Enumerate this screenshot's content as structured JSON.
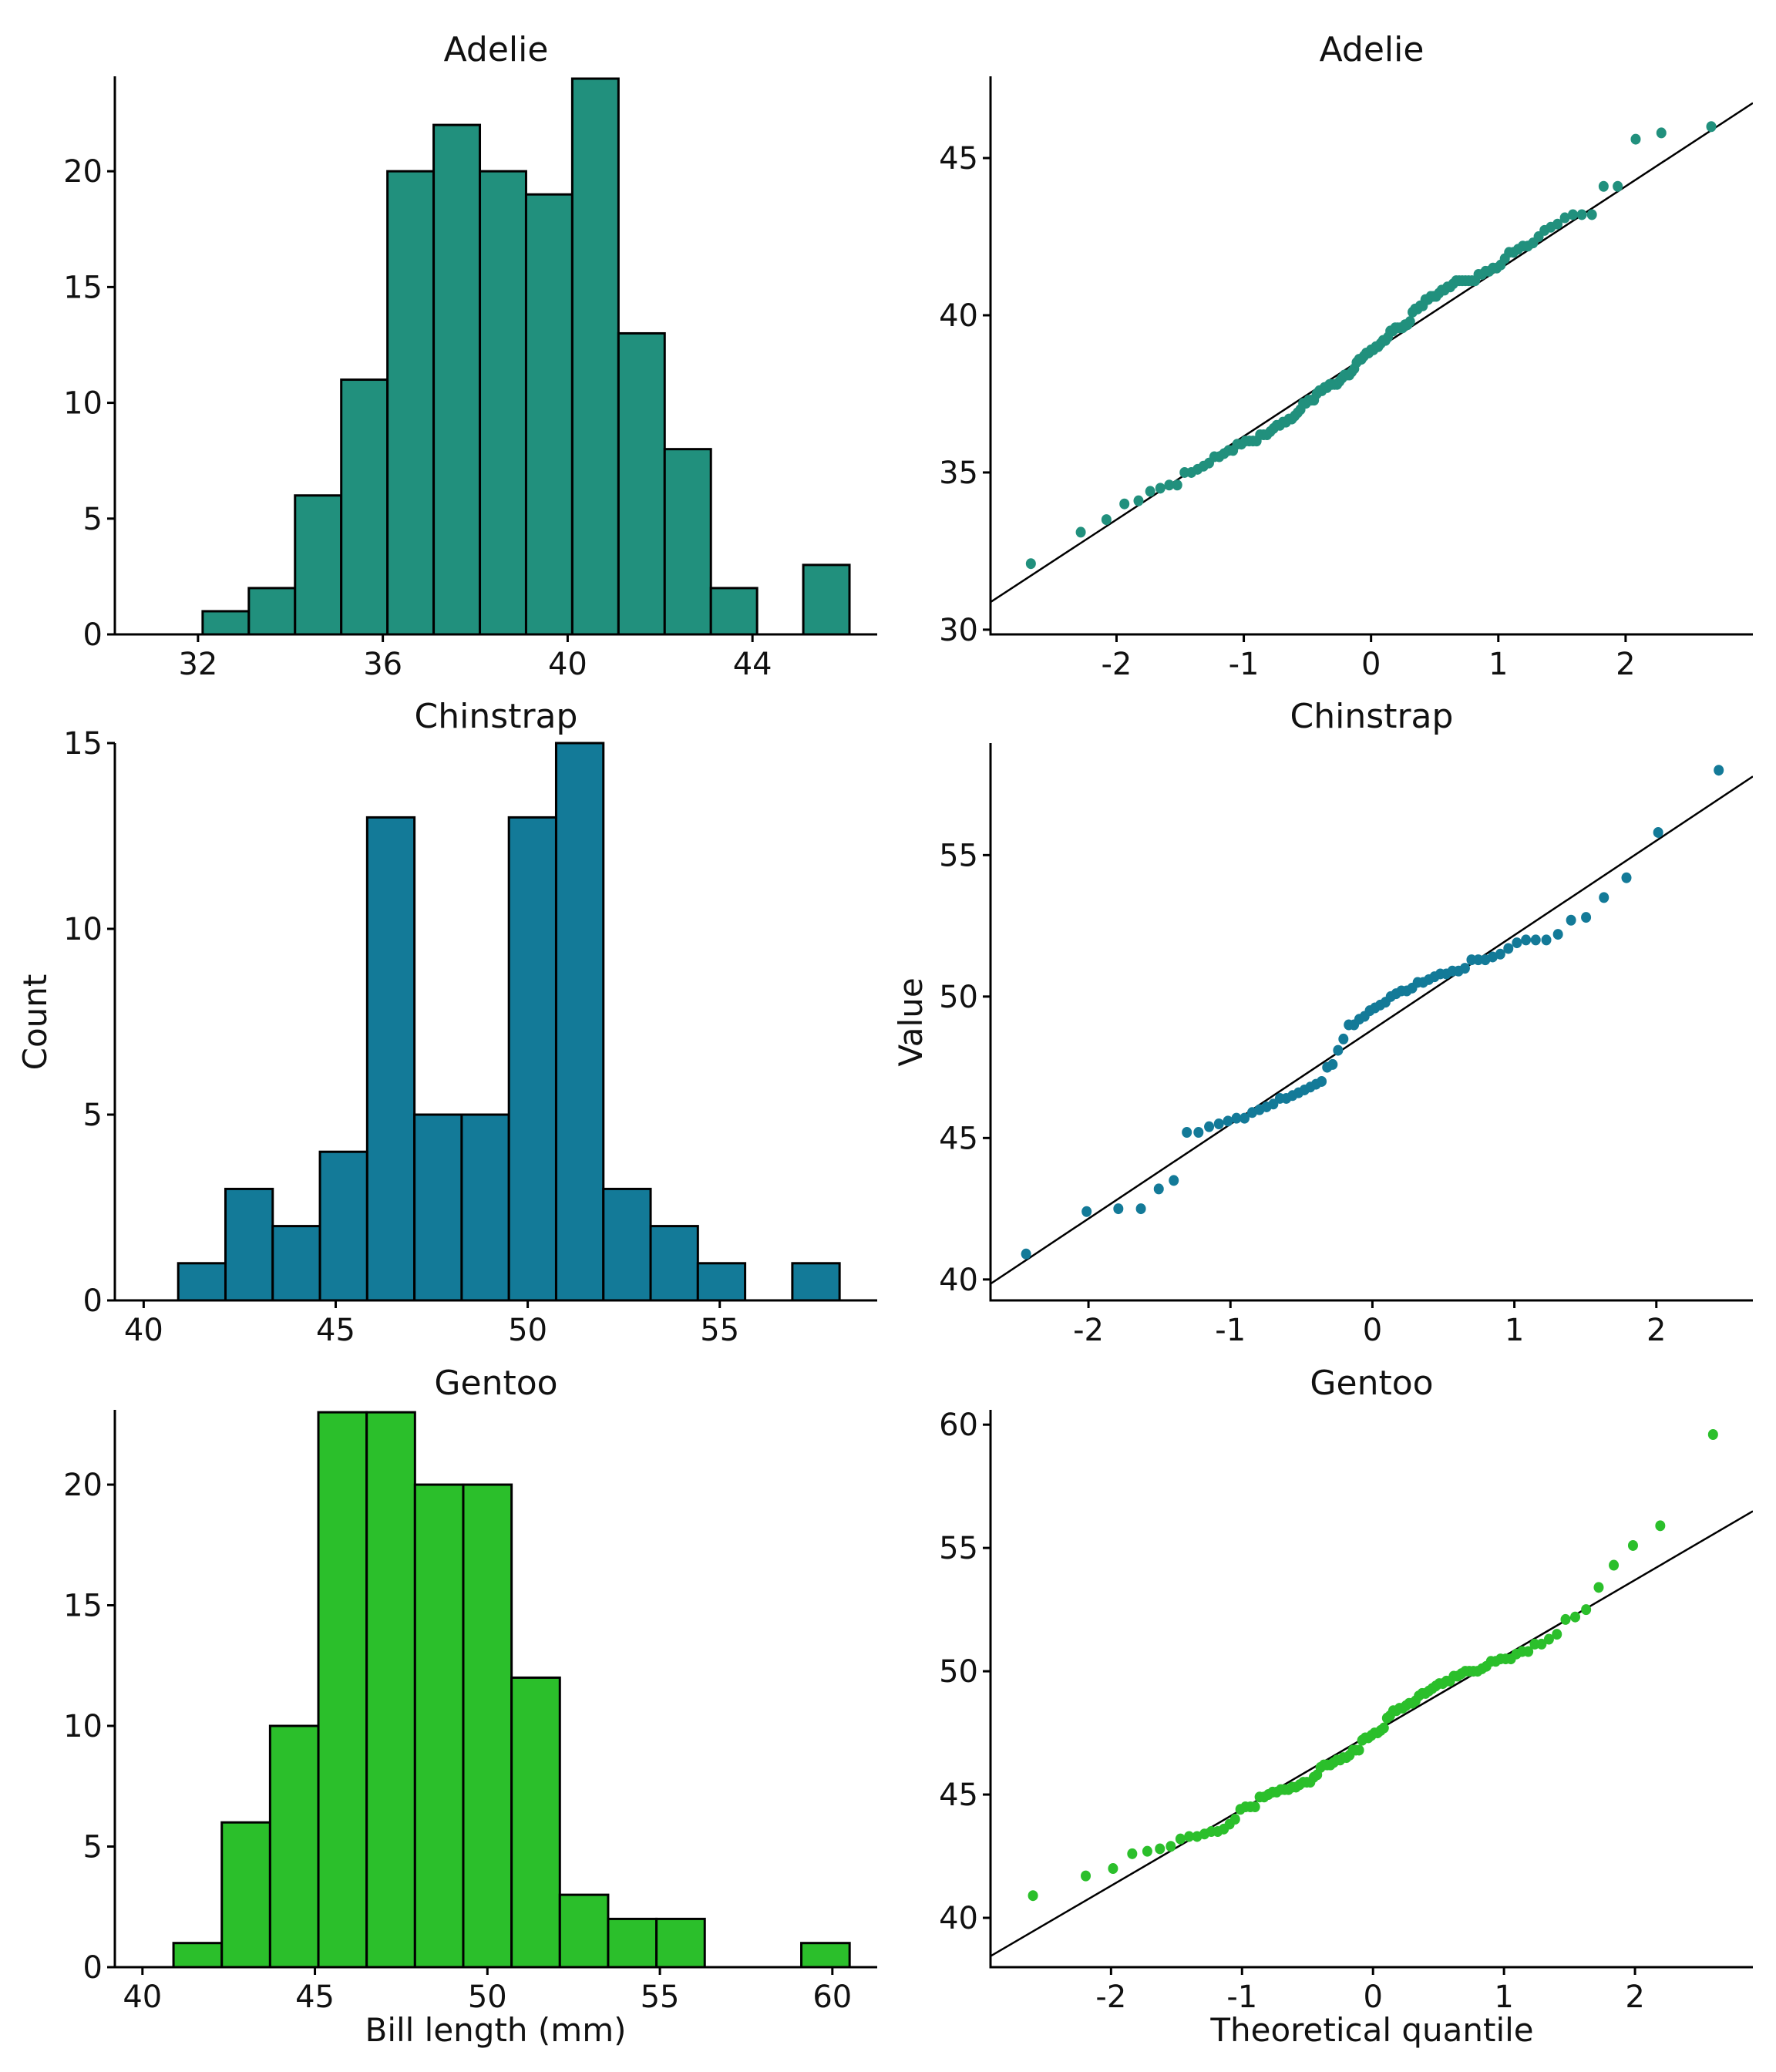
{
  "figure": {
    "hist_ylabel": "Count",
    "hist_xlabel": "Bill length (mm)",
    "qq_ylabel": "Value",
    "qq_xlabel": "Theoretical quantile"
  },
  "chart_data": [
    {
      "type": "bar",
      "kind": "histogram",
      "title": "Adelie",
      "color": "#21907d",
      "xlabel": "",
      "ylabel": "",
      "bin_start": 32.1,
      "bin_width": 1.0,
      "values": [
        1,
        2,
        6,
        11,
        20,
        22,
        20,
        19,
        24,
        13,
        8,
        2,
        0,
        3
      ],
      "xlim": [
        30.2,
        46.7
      ],
      "ylim": [
        0,
        24.1
      ],
      "xticks": [
        32,
        36,
        40,
        44
      ],
      "yticks": [
        0,
        5,
        10,
        15,
        20
      ],
      "grid": false
    },
    {
      "type": "scatter",
      "kind": "qq",
      "title": "Adelie",
      "color": "#21907d",
      "xlabel": "",
      "ylabel": "",
      "xlim": [
        -2.99,
        3.0
      ],
      "ylim": [
        29.85,
        47.6
      ],
      "xticks": [
        -2,
        -1,
        0,
        1,
        2
      ],
      "yticks": [
        30,
        35,
        40,
        45
      ],
      "reference_line": {
        "intercept": 38.8,
        "slope": 2.65
      },
      "sample_values": [
        32.1,
        33.1,
        33.5,
        34.0,
        34.1,
        34.4,
        34.5,
        34.6,
        34.6,
        35.0,
        35.0,
        35.1,
        35.2,
        35.3,
        35.5,
        35.5,
        35.6,
        35.7,
        35.7,
        35.9,
        35.9,
        36.0,
        36.0,
        36.0,
        36.0,
        36.2,
        36.2,
        36.2,
        36.3,
        36.4,
        36.5,
        36.5,
        36.6,
        36.6,
        36.7,
        36.7,
        36.8,
        36.9,
        37.0,
        37.2,
        37.2,
        37.3,
        37.3,
        37.3,
        37.5,
        37.6,
        37.6,
        37.7,
        37.7,
        37.8,
        37.8,
        37.8,
        37.8,
        37.9,
        38.0,
        38.1,
        38.1,
        38.1,
        38.2,
        38.3,
        38.5,
        38.6,
        38.6,
        38.7,
        38.8,
        38.8,
        38.9,
        38.9,
        39.0,
        39.0,
        39.1,
        39.2,
        39.2,
        39.3,
        39.5,
        39.5,
        39.6,
        39.6,
        39.6,
        39.6,
        39.7,
        39.7,
        39.8,
        40.1,
        40.2,
        40.2,
        40.3,
        40.3,
        40.5,
        40.5,
        40.6,
        40.6,
        40.6,
        40.7,
        40.8,
        40.8,
        40.9,
        40.9,
        41.0,
        41.1,
        41.1,
        41.1,
        41.1,
        41.1,
        41.1,
        41.1,
        41.3,
        41.3,
        41.4,
        41.4,
        41.5,
        41.5,
        41.6,
        41.8,
        42.0,
        42.0,
        42.1,
        42.2,
        42.2,
        42.3,
        42.5,
        42.7,
        42.8,
        42.9,
        43.1,
        43.2,
        43.2,
        43.2,
        44.1,
        44.1,
        45.6,
        45.8,
        46.0
      ],
      "grid": false
    },
    {
      "type": "bar",
      "kind": "histogram",
      "title": "Chinstrap",
      "color": "#137a98",
      "xlabel": "",
      "ylabel": "Count",
      "bin_start": 40.9,
      "bin_width": 1.23,
      "values": [
        1,
        3,
        2,
        4,
        13,
        5,
        5,
        13,
        15,
        3,
        2,
        1,
        0,
        1
      ],
      "xlim": [
        39.25,
        59.1
      ],
      "ylim": [
        0,
        15
      ],
      "xticks": [
        40,
        45,
        50,
        55
      ],
      "yticks": [
        0,
        5,
        10,
        15
      ],
      "grid": false
    },
    {
      "type": "scatter",
      "kind": "qq",
      "title": "Chinstrap",
      "color": "#137a98",
      "xlabel": "",
      "ylabel": "Value",
      "xlim": [
        -2.69,
        2.68
      ],
      "ylim": [
        39.26,
        58.96
      ],
      "xticks": [
        -2,
        -1,
        0,
        1,
        2
      ],
      "yticks": [
        40,
        45,
        50,
        55
      ],
      "reference_line": {
        "intercept": 48.83,
        "slope": 3.34
      },
      "sample_values": [
        40.9,
        42.4,
        42.5,
        42.5,
        43.2,
        43.5,
        45.2,
        45.2,
        45.4,
        45.5,
        45.6,
        45.7,
        45.7,
        45.9,
        46.0,
        46.1,
        46.2,
        46.4,
        46.4,
        46.5,
        46.6,
        46.7,
        46.8,
        46.9,
        47.0,
        47.5,
        47.6,
        48.1,
        48.5,
        49.0,
        49.0,
        49.2,
        49.3,
        49.5,
        49.6,
        49.7,
        49.8,
        50.0,
        50.1,
        50.2,
        50.2,
        50.3,
        50.5,
        50.5,
        50.6,
        50.7,
        50.8,
        50.8,
        50.9,
        50.9,
        51.0,
        51.3,
        51.3,
        51.3,
        51.4,
        51.5,
        51.7,
        51.9,
        52.0,
        52.0,
        52.0,
        52.2,
        52.7,
        52.8,
        53.5,
        54.2,
        55.8,
        58.0
      ],
      "grid": false
    },
    {
      "type": "bar",
      "kind": "histogram",
      "title": "Gentoo",
      "color": "#2bbf2b",
      "xlabel": "Bill length (mm)",
      "ylabel": "",
      "bin_start": 40.9,
      "bin_width": 1.4,
      "values": [
        1,
        6,
        10,
        23,
        23,
        20,
        20,
        12,
        3,
        2,
        2,
        0,
        0,
        1
      ],
      "xlim": [
        39.2,
        61.3
      ],
      "ylim": [
        0,
        23.1
      ],
      "xticks": [
        40,
        45,
        50,
        55,
        60
      ],
      "yticks": [
        0,
        5,
        10,
        15,
        20
      ],
      "grid": false
    },
    {
      "type": "scatter",
      "kind": "qq",
      "title": "Gentoo",
      "color": "#2bbf2b",
      "xlabel": "Theoretical quantile",
      "ylabel": "",
      "xlim": [
        -2.92,
        2.9
      ],
      "ylim": [
        38.0,
        60.6
      ],
      "xticks": [
        -2,
        -1,
        0,
        1,
        2
      ],
      "yticks": [
        40,
        45,
        50,
        55,
        60
      ],
      "reference_line": {
        "intercept": 47.5,
        "slope": 3.1
      },
      "sample_values": [
        40.9,
        41.7,
        42.0,
        42.6,
        42.7,
        42.8,
        42.9,
        43.2,
        43.3,
        43.3,
        43.4,
        43.5,
        43.5,
        43.6,
        43.8,
        44.0,
        44.4,
        44.5,
        44.5,
        44.5,
        44.9,
        44.9,
        45.0,
        45.1,
        45.1,
        45.2,
        45.2,
        45.2,
        45.3,
        45.3,
        45.4,
        45.5,
        45.5,
        45.5,
        45.7,
        45.8,
        46.1,
        46.2,
        46.2,
        46.2,
        46.3,
        46.4,
        46.4,
        46.5,
        46.5,
        46.6,
        46.8,
        46.8,
        46.8,
        47.2,
        47.3,
        47.3,
        47.4,
        47.5,
        47.5,
        47.6,
        47.7,
        48.1,
        48.2,
        48.4,
        48.4,
        48.5,
        48.5,
        48.6,
        48.7,
        48.7,
        48.8,
        49.0,
        49.1,
        49.1,
        49.2,
        49.3,
        49.4,
        49.5,
        49.5,
        49.6,
        49.6,
        49.8,
        49.8,
        49.9,
        50.0,
        50.0,
        50.0,
        50.0,
        50.1,
        50.2,
        50.4,
        50.4,
        50.5,
        50.5,
        50.5,
        50.7,
        50.8,
        50.8,
        51.1,
        51.1,
        51.3,
        51.5,
        52.1,
        52.2,
        52.5,
        53.4,
        54.3,
        55.1,
        55.9,
        59.6
      ],
      "grid": false
    }
  ]
}
